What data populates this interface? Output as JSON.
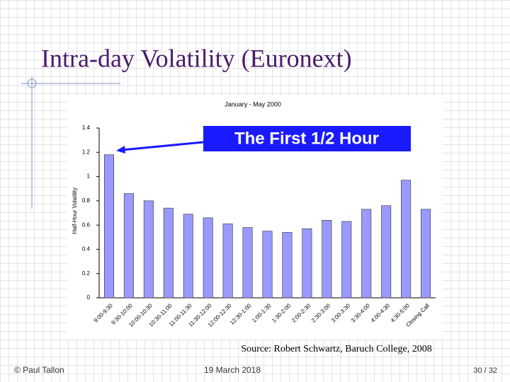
{
  "slide": {
    "title": "Intra-day Volatility (Euronext)",
    "source": "Source: Robert Schwartz, Baruch College, 2008",
    "footer_left": "© Paul Tallon",
    "footer_center": "19 March 2018",
    "footer_right": "30 / 32"
  },
  "chart_data": {
    "type": "bar",
    "title": "January - May 2000",
    "y_label": "Half-Hour Volatility",
    "annotation": "The First 1/2 Hour",
    "categories": [
      "9:00-9:30",
      "9:30-10:00",
      "10:00-10:30",
      "10:30-11:00",
      "11:00-11:30",
      "11:30-12:00",
      "12:00-12:30",
      "12:30-1:00",
      "1:00-1:30",
      "1:30-2:00",
      "2:00-2:30",
      "2:30-3:00",
      "3:00-3:30",
      "3:30-4:00",
      "4:00-4:30",
      "4:30-5:00",
      "Closing Call"
    ],
    "values": [
      1.18,
      0.86,
      0.8,
      0.74,
      0.69,
      0.66,
      0.61,
      0.58,
      0.55,
      0.54,
      0.57,
      0.64,
      0.63,
      0.73,
      0.76,
      0.97,
      0.73
    ],
    "color": "#9999ff",
    "ylim": [
      0,
      1.4
    ],
    "yticks": [
      0,
      0.2,
      0.4,
      0.6,
      0.8,
      1,
      1.2,
      1.4
    ],
    "grid": false
  }
}
